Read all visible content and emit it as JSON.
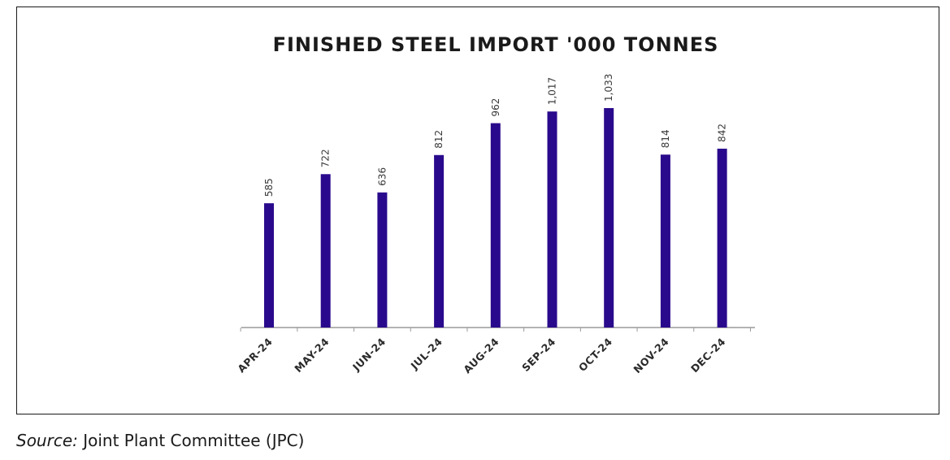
{
  "chart_data": {
    "type": "bar",
    "title": "FINISHED STEEL IMPORT '000 TONNES",
    "categories": [
      "APR-24",
      "MAY-24",
      "JUN-24",
      "JUL-24",
      "AUG-24",
      "SEP-24",
      "OCT-24",
      "NOV-24",
      "DEC-24"
    ],
    "values": [
      585,
      722,
      636,
      812,
      962,
      1017,
      1033,
      814,
      842
    ],
    "value_labels": [
      "585",
      "722",
      "636",
      "812",
      "962",
      "1,017",
      "1,033",
      "814",
      "842"
    ],
    "xlabel": "",
    "ylabel": "",
    "ylim": [
      0,
      1033
    ],
    "grid": false,
    "legend": "none",
    "colors": {
      "bar": "#2a0a8c",
      "axis": "#9a9a9a"
    }
  },
  "source": {
    "prefix": "Source:",
    "text": " Joint Plant Committee (JPC)"
  }
}
